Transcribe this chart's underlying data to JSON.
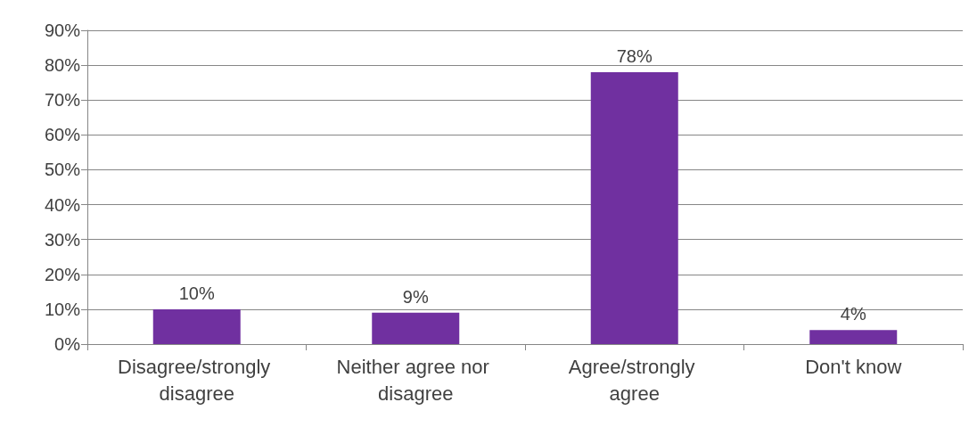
{
  "chart_data": {
    "type": "bar",
    "categories": [
      "Disagree/strongly disagree",
      "Neither agree nor disagree",
      "Agree/strongly agree",
      "Don't know"
    ],
    "values": [
      10,
      9,
      78,
      4
    ],
    "value_labels": [
      "10%",
      "9%",
      "78%",
      "4%"
    ],
    "color": "#7030a0",
    "ylim": [
      0,
      90
    ],
    "yticks": [
      {
        "value": 0,
        "label": "0%"
      },
      {
        "value": 10,
        "label": "10%"
      },
      {
        "value": 20,
        "label": "20%"
      },
      {
        "value": 30,
        "label": "30%"
      },
      {
        "value": 40,
        "label": "40%"
      },
      {
        "value": 50,
        "label": "50%"
      },
      {
        "value": 60,
        "label": "60%"
      },
      {
        "value": 70,
        "label": "70%"
      },
      {
        "value": 80,
        "label": "80%"
      },
      {
        "value": 90,
        "label": "90%"
      }
    ],
    "grid": true
  }
}
